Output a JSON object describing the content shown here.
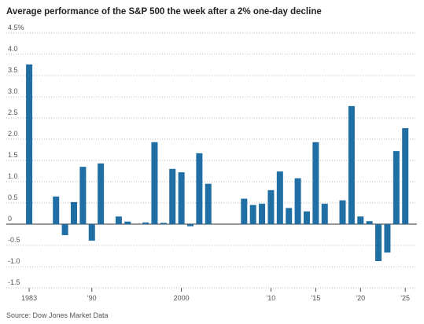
{
  "chart_data": {
    "type": "bar",
    "title": "Average performance of the S&P 500 the week after a 2% one-day decline",
    "source": "Source: Dow Jones Market Data",
    "color": "#1f6fa5",
    "x": [
      1983,
      1986,
      1987,
      1988,
      1989,
      1990,
      1991,
      1993,
      1994,
      1996,
      1997,
      1998,
      1999,
      2000,
      2001,
      2002,
      2003,
      2007,
      2008,
      2009,
      2010,
      2011,
      2012,
      2013,
      2014,
      2015,
      2016,
      2018,
      2019,
      2020,
      2021,
      2022,
      2023,
      2024,
      2025
    ],
    "values": [
      3.76,
      0.65,
      -0.26,
      0.52,
      1.35,
      -0.39,
      1.43,
      0.18,
      0.06,
      0.04,
      1.93,
      0.03,
      1.3,
      1.22,
      -0.05,
      1.67,
      0.95,
      0.6,
      0.45,
      0.48,
      0.8,
      1.24,
      0.38,
      1.08,
      0.3,
      1.93,
      0.48,
      0.56,
      2.78,
      0.18,
      0.07,
      -0.87,
      -0.67,
      1.72,
      2.26
    ],
    "xlim": [
      1981.5,
      2026.3
    ],
    "xticks": [
      1983,
      {
        "value": 1990,
        "label": "'90"
      },
      2000,
      {
        "value": 2010,
        "label": "'10"
      },
      {
        "value": 2015,
        "label": "'15"
      },
      {
        "value": 2020,
        "label": "'20"
      },
      {
        "value": 2025,
        "label": "'25"
      }
    ],
    "ylim": [
      -1.5,
      4.5
    ],
    "yticks": [
      -1.5,
      {
        "value": -1,
        "label": "-1.0"
      },
      -0.5,
      0,
      0.5,
      {
        "value": 1,
        "label": "1.0"
      },
      1.5,
      {
        "value": 2,
        "label": "2.0"
      },
      2.5,
      {
        "value": 3,
        "label": "3.0"
      },
      3.5,
      {
        "value": 4,
        "label": "4.0"
      },
      {
        "value": 4.5,
        "label": "4.5%"
      }
    ],
    "grid": true
  }
}
